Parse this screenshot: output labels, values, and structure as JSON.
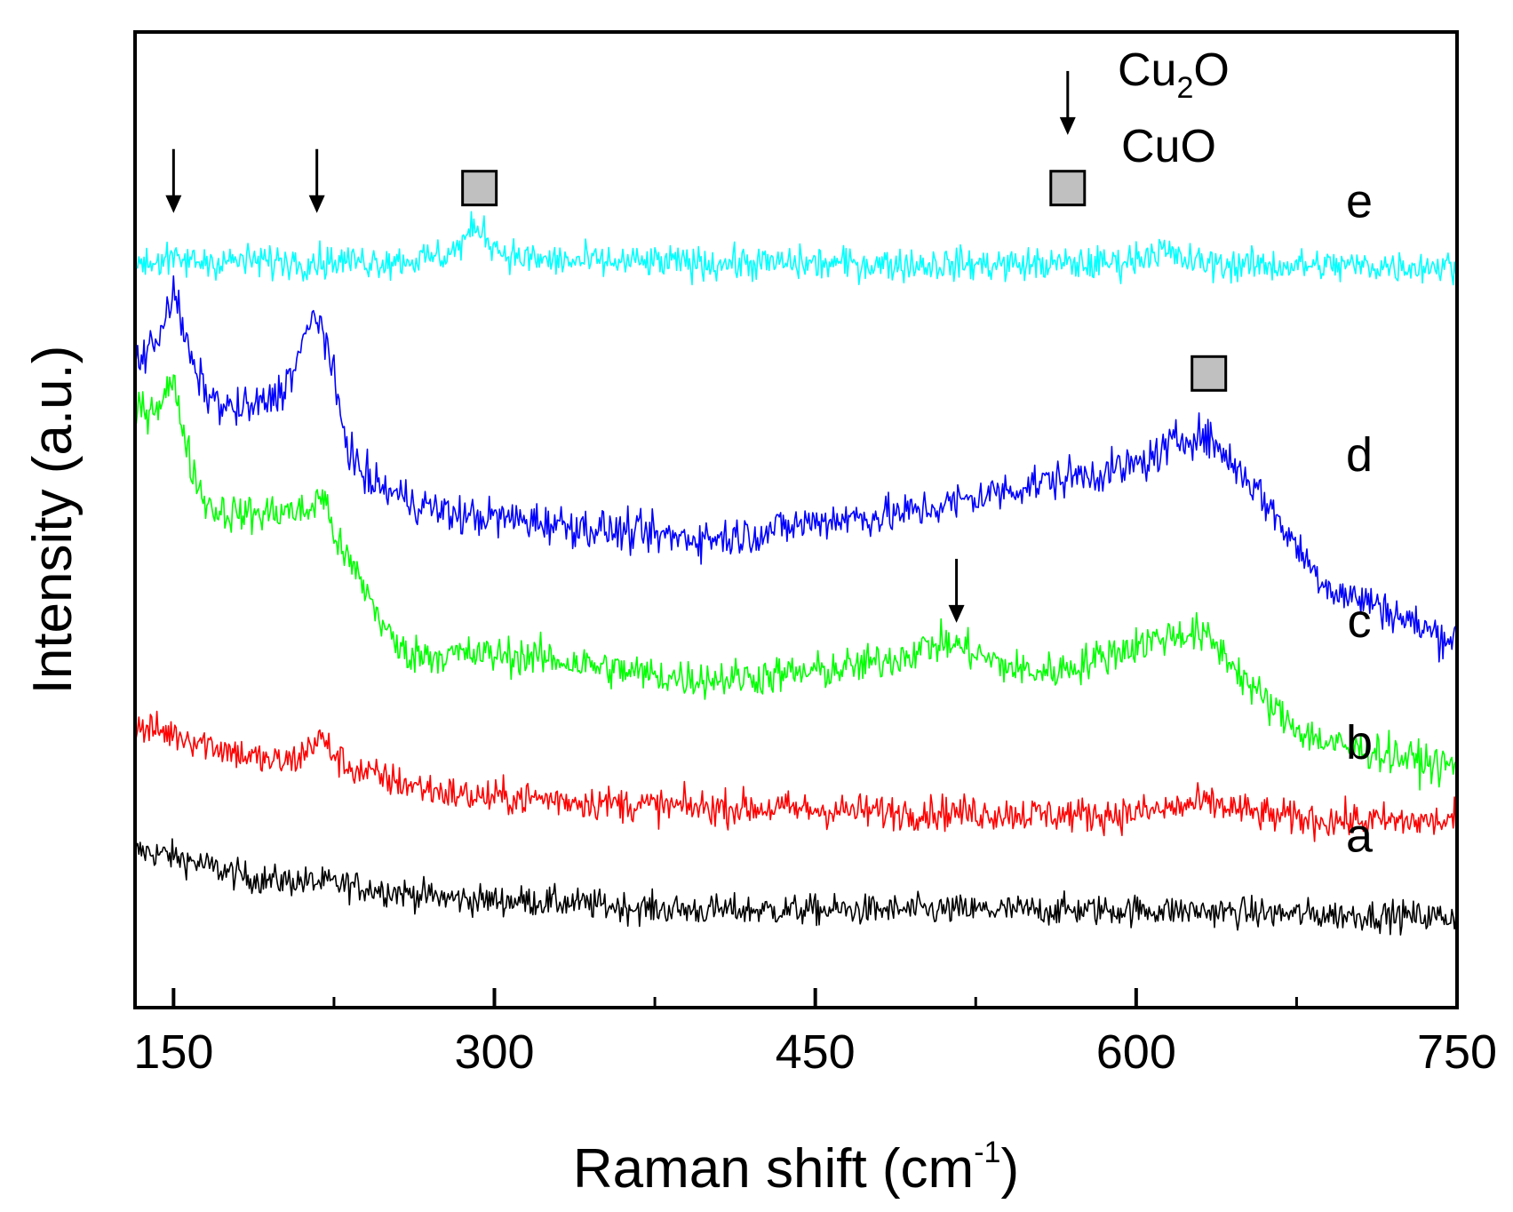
{
  "chart_data": {
    "type": "line",
    "title": "",
    "xlabel": "Raman shift (cm",
    "xlabel_sup": "-1",
    "xlabel_close": ")",
    "ylabel": "Intensity (a.u.)",
    "xlim": [
      132,
      750
    ],
    "ylim": [
      0,
      100
    ],
    "xticks": [
      150,
      300,
      450,
      600,
      750
    ],
    "xticks_minor": [
      225,
      375,
      525,
      675
    ],
    "x_step": 0.6,
    "grid": false,
    "legend": {
      "position": "top-right",
      "cu2o_label_main": "Cu",
      "cu2o_label_sub": "2",
      "cu2o_label_tail": "O",
      "cuo_label": "CuO"
    },
    "series": [
      {
        "name": "a",
        "color": "#000000",
        "noise": 2.0,
        "knots": [
          [
            132,
            16
          ],
          [
            200,
            13
          ],
          [
            300,
            11
          ],
          [
            400,
            10
          ],
          [
            500,
            10
          ],
          [
            600,
            10
          ],
          [
            700,
            9.5
          ],
          [
            750,
            9.3
          ]
        ],
        "peaks": []
      },
      {
        "name": "b",
        "color": "#ff0000",
        "noise": 2.3,
        "knots": [
          [
            132,
            28.5
          ],
          [
            220,
            24
          ],
          [
            300,
            21.5
          ],
          [
            400,
            20.5
          ],
          [
            500,
            20
          ],
          [
            600,
            19.5
          ],
          [
            700,
            19
          ],
          [
            750,
            19
          ]
        ],
        "peaks": [
          [
            218,
            3.5,
            8
          ],
          [
            633,
            1.5,
            22
          ]
        ]
      },
      {
        "name": "c",
        "color": "#00ff00",
        "noise": 2.5,
        "knots": [
          [
            132,
            60
          ],
          [
            170,
            50
          ],
          [
            200,
            50
          ],
          [
            230,
            44
          ],
          [
            260,
            36
          ],
          [
            300,
            36
          ],
          [
            400,
            33.5
          ],
          [
            480,
            34
          ],
          [
            550,
            33
          ],
          [
            600,
            35
          ],
          [
            700,
            26
          ],
          [
            750,
            24.5
          ]
        ],
        "peaks": [
          [
            150,
            8,
            7
          ],
          [
            220,
            6.5,
            7
          ],
          [
            512,
            3.5,
            25
          ],
          [
            632,
            5,
            25
          ]
        ]
      },
      {
        "name": "d",
        "color": "#0000ff",
        "noise": 2.6,
        "knots": [
          [
            132,
            65
          ],
          [
            180,
            60
          ],
          [
            205,
            60
          ],
          [
            240,
            52
          ],
          [
            290,
            50
          ],
          [
            400,
            48
          ],
          [
            470,
            50
          ],
          [
            570,
            53
          ],
          [
            650,
            49
          ],
          [
            700,
            41
          ],
          [
            750,
            37.5
          ]
        ],
        "peaks": [
          [
            150,
            9,
            7
          ],
          [
            218,
            13,
            10
          ],
          [
            630,
            9,
            26
          ]
        ]
      },
      {
        "name": "e",
        "color": "#00ffff",
        "noise": 2.2,
        "knots": [
          [
            132,
            76.5
          ],
          [
            750,
            76
          ]
        ],
        "peaks": [
          [
            292,
            3.5,
            8
          ],
          [
            610,
            1.5,
            10
          ]
        ]
      }
    ],
    "annotations": {
      "cu2o_arrows_x": [
        150,
        217,
        516,
        568
      ],
      "cuo_squares": [
        {
          "x": 293,
          "y": 84
        },
        {
          "x": 568,
          "y": 84
        },
        {
          "x": 634,
          "y": 65
        }
      ],
      "series_labels": [
        {
          "text": "e",
          "y": 81
        },
        {
          "text": "d",
          "y": 55
        },
        {
          "text": "c",
          "y": 38
        },
        {
          "text": "b",
          "y": 25.5
        },
        {
          "text": "a",
          "y": 16
        }
      ]
    }
  }
}
